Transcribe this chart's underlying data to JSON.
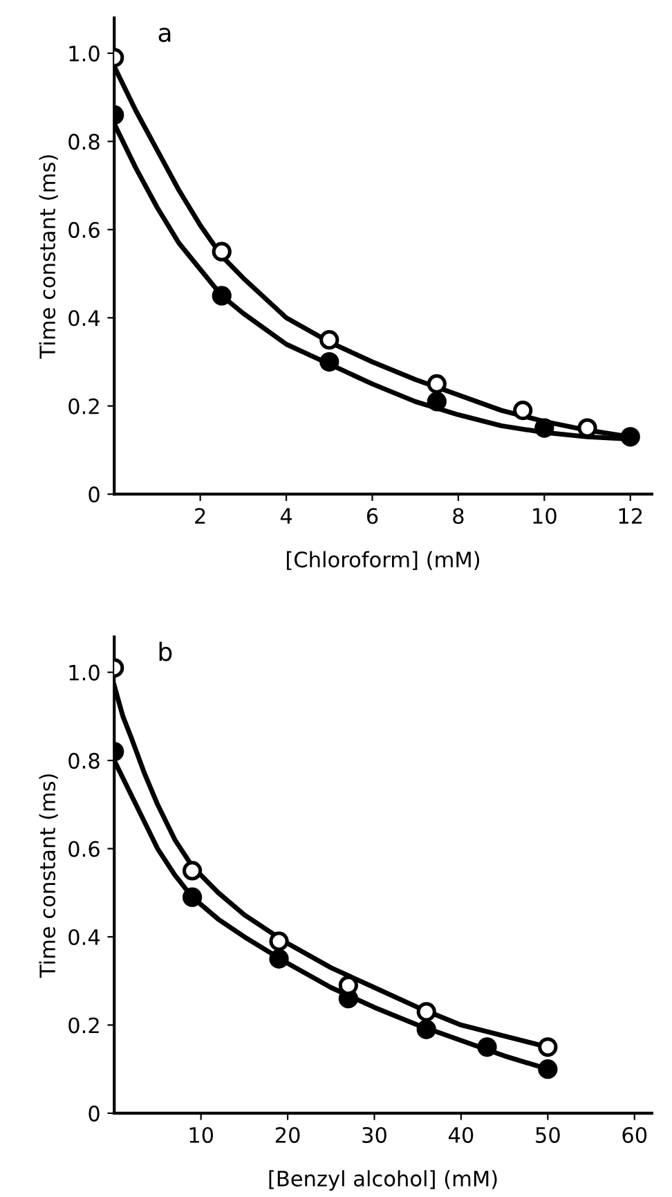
{
  "chart_data": [
    {
      "type": "scatter",
      "title": "a",
      "xlabel": "[Chloroform] (mM)",
      "ylabel": "Time constant (ms)",
      "xlim": [
        0,
        12.5
      ],
      "ylim": [
        0,
        1.08
      ],
      "xticks": [
        2,
        4,
        6,
        8,
        10,
        12
      ],
      "yticks": [
        0,
        0.2,
        0.4,
        0.6,
        0.8,
        {
          "value": 1,
          "label": "1.0"
        }
      ],
      "grid": false,
      "legend": false,
      "marker": "circle",
      "series": [
        {
          "type": "line",
          "color": "#000000",
          "line_style": "solid",
          "marker": "none",
          "x": [
            0,
            0.5,
            1,
            1.5,
            2,
            2.5,
            3,
            4,
            5,
            6,
            7,
            8,
            9,
            10,
            11,
            12
          ],
          "values": [
            0.97,
            0.87,
            0.78,
            0.69,
            0.61,
            0.54,
            0.49,
            0.4,
            0.345,
            0.3,
            0.26,
            0.225,
            0.19,
            0.165,
            0.145,
            0.13
          ]
        },
        {
          "type": "line",
          "color": "#000000",
          "line_style": "solid",
          "marker": "none",
          "x": [
            0,
            0.5,
            1,
            1.5,
            2,
            2.5,
            3,
            4,
            5,
            6,
            7,
            8,
            9,
            10,
            11,
            12
          ],
          "values": [
            0.84,
            0.74,
            0.65,
            0.57,
            0.51,
            0.45,
            0.41,
            0.34,
            0.295,
            0.25,
            0.21,
            0.18,
            0.155,
            0.14,
            0.13,
            0.125
          ]
        },
        {
          "color": "#ffffff",
          "x": [
            0,
            2.5,
            5,
            7.5,
            9.5,
            11
          ],
          "values": [
            0.99,
            0.55,
            0.35,
            0.25,
            0.19,
            0.15
          ]
        },
        {
          "color": "#000000",
          "x": [
            0,
            2.5,
            5,
            7.5,
            10,
            12
          ],
          "values": [
            0.86,
            0.45,
            0.3,
            0.21,
            0.15,
            0.13
          ]
        }
      ]
    },
    {
      "type": "scatter",
      "title": "b",
      "xlabel": "[Benzyl alcohol] (mM)",
      "ylabel": "Time constant (ms)",
      "xlim": [
        0,
        62
      ],
      "ylim": [
        0,
        1.08
      ],
      "xticks": [
        10,
        20,
        30,
        40,
        50,
        60
      ],
      "yticks": [
        0,
        0.2,
        0.4,
        0.6,
        0.8,
        {
          "value": 1,
          "label": "1.0"
        }
      ],
      "grid": false,
      "legend": false,
      "marker": "circle",
      "series": [
        {
          "type": "line",
          "color": "#000000",
          "line_style": "solid",
          "marker": "none",
          "x": [
            0,
            1,
            2,
            3.5,
            5,
            7,
            9,
            12,
            15,
            20,
            25,
            30,
            35,
            40,
            45,
            50
          ],
          "values": [
            0.97,
            0.9,
            0.85,
            0.77,
            0.7,
            0.62,
            0.56,
            0.5,
            0.45,
            0.385,
            0.33,
            0.285,
            0.24,
            0.2,
            0.175,
            0.15
          ]
        },
        {
          "type": "line",
          "color": "#000000",
          "line_style": "solid",
          "marker": "none",
          "x": [
            0,
            1,
            2,
            3.5,
            5,
            7,
            9,
            12,
            15,
            20,
            25,
            30,
            35,
            40,
            45,
            50
          ],
          "values": [
            0.8,
            0.76,
            0.72,
            0.66,
            0.6,
            0.54,
            0.49,
            0.44,
            0.4,
            0.34,
            0.285,
            0.24,
            0.2,
            0.165,
            0.13,
            0.1
          ]
        },
        {
          "color": "#ffffff",
          "x": [
            0,
            9,
            19,
            27,
            36,
            50
          ],
          "values": [
            1.01,
            0.55,
            0.39,
            0.29,
            0.23,
            0.15
          ]
        },
        {
          "color": "#000000",
          "x": [
            0,
            9,
            19,
            27,
            36,
            43,
            50
          ],
          "values": [
            0.82,
            0.49,
            0.35,
            0.26,
            0.19,
            0.15,
            0.1
          ]
        }
      ]
    }
  ]
}
